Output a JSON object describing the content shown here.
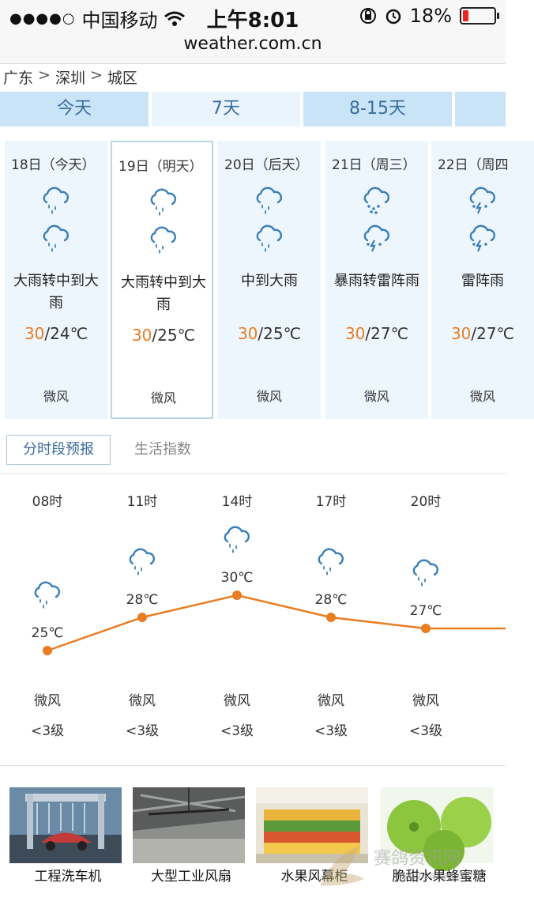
{
  "status_bar": {
    "carrier": "中国移动",
    "time": "上午8:01",
    "battery": "18%"
  },
  "url": "weather.com.cn",
  "breadcrumb": [
    "广东",
    "深圳",
    "城区"
  ],
  "tabs": [
    "今天",
    "7天",
    "8-15天"
  ],
  "days": [
    {
      "date": "18日（今天）",
      "desc": "大雨转中到大雨",
      "high": "30",
      "low": "/24℃",
      "wind": "微风",
      "icon1": "rain-cloud-icon",
      "icon2": "rain-cloud-icon"
    },
    {
      "date": "19日（明天）",
      "desc": "大雨转中到大雨",
      "high": "30",
      "low": "/25℃",
      "wind": "微风",
      "icon1": "rain-cloud-icon",
      "icon2": "rain-cloud-icon"
    },
    {
      "date": "20日（后天）",
      "desc": "中到大雨",
      "high": "30",
      "low": "/25℃",
      "wind": "微风",
      "icon1": "rain-cloud-icon",
      "icon2": "rain-cloud-icon"
    },
    {
      "date": "21日（周三）",
      "desc": "暴雨转雷阵雨",
      "high": "30",
      "low": "/27℃",
      "wind": "微风",
      "icon1": "heavy-rain-cloud-icon",
      "icon2": "thunder-cloud-icon"
    },
    {
      "date": "22日（周四",
      "desc": "雷阵雨",
      "high": "30",
      "low": "/27℃",
      "wind": "微风",
      "icon1": "thunder-cloud-icon",
      "icon2": "thunder-cloud-icon"
    }
  ],
  "subtabs": {
    "hourly": "分时段预报",
    "life": "生活指数"
  },
  "hourly": [
    {
      "time": "08时",
      "temp": "25℃",
      "temp_value": 25,
      "wind": "微风",
      "level": "<3级"
    },
    {
      "time": "11时",
      "temp": "28℃",
      "temp_value": 28,
      "wind": "微风",
      "level": "<3级"
    },
    {
      "time": "14时",
      "temp": "30℃",
      "temp_value": 30,
      "wind": "微风",
      "level": "<3级"
    },
    {
      "time": "17时",
      "temp": "28℃",
      "temp_value": 28,
      "wind": "微风",
      "level": "<3级"
    },
    {
      "time": "20时",
      "temp": "27℃",
      "temp_value": 27,
      "wind": "微风",
      "level": "<3级"
    }
  ],
  "ads": [
    "工程洗车机",
    "大型工业风扇",
    "水果风幕柜",
    "脆甜水果蜂蜜糖"
  ],
  "watermark": {
    "text": "赛鸽资讯网",
    "url": "www.saige.com"
  },
  "colors": {
    "accent": "#e87d22",
    "tab_bg": "#c9e4f7",
    "tab_text": "#3c6c9c",
    "card_bg": "#eef6fd",
    "icon": "#3a7fb8"
  }
}
